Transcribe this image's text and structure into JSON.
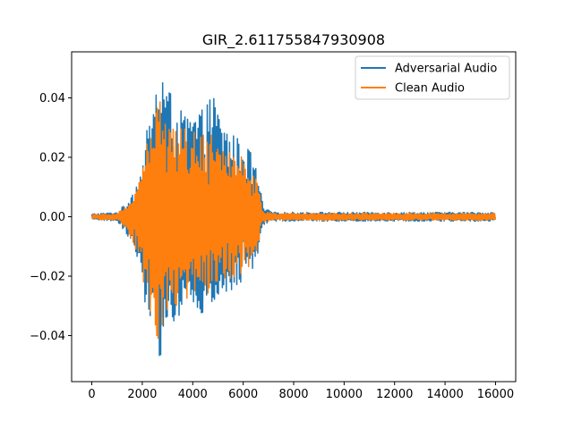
{
  "chart_data": {
    "type": "line",
    "title": "GIR_2.611755847930908",
    "xlabel": "",
    "ylabel": "",
    "xlim": [
      -800,
      16800
    ],
    "ylim": [
      -0.0555,
      0.0555
    ],
    "xticks": [
      0,
      2000,
      4000,
      6000,
      8000,
      10000,
      12000,
      14000,
      16000
    ],
    "xtick_labels": [
      "0",
      "2000",
      "4000",
      "6000",
      "8000",
      "10000",
      "12000",
      "14000",
      "16000"
    ],
    "yticks": [
      -0.04,
      -0.02,
      0.0,
      0.02,
      0.04
    ],
    "ytick_labels": [
      "−0.04",
      "−0.02",
      "0.00",
      "0.02",
      "0.04"
    ],
    "grid": false,
    "legend_position": "top-right",
    "n_samples": 16000,
    "series": [
      {
        "name": "Adversarial Audio",
        "color": "#1f77b4",
        "envelope": {
          "x": [
            0,
            1000,
            1400,
            1800,
            2000,
            2200,
            2400,
            2600,
            2800,
            3000,
            3300,
            3600,
            4000,
            4400,
            4800,
            5200,
            5600,
            6000,
            6300,
            6600,
            6800,
            7200,
            8000,
            10000,
            12000,
            14000,
            16000
          ],
          "upper": [
            0.001,
            0.0015,
            0.005,
            0.012,
            0.018,
            0.03,
            0.036,
            0.048,
            0.052,
            0.045,
            0.038,
            0.035,
            0.035,
            0.036,
            0.042,
            0.032,
            0.028,
            0.025,
            0.022,
            0.014,
            0.003,
            0.0015,
            0.0015,
            0.0015,
            0.0015,
            0.0015,
            0.0015
          ],
          "lower": [
            -0.001,
            -0.0015,
            -0.006,
            -0.014,
            -0.022,
            -0.035,
            -0.04,
            -0.05,
            -0.045,
            -0.04,
            -0.035,
            -0.033,
            -0.034,
            -0.033,
            -0.03,
            -0.028,
            -0.026,
            -0.022,
            -0.02,
            -0.012,
            -0.003,
            -0.0015,
            -0.0015,
            -0.0015,
            -0.0015,
            -0.0015,
            -0.0015
          ]
        }
      },
      {
        "name": "Clean Audio",
        "color": "#ff7f0e",
        "envelope": {
          "x": [
            0,
            1000,
            1400,
            1800,
            2000,
            2200,
            2400,
            2600,
            2800,
            3000,
            3300,
            3600,
            4000,
            4400,
            4800,
            5200,
            5600,
            6000,
            6300,
            6600,
            6800,
            7200,
            8000,
            10000,
            12000,
            14000,
            16000
          ],
          "upper": [
            0.0008,
            0.0012,
            0.004,
            0.01,
            0.016,
            0.027,
            0.031,
            0.038,
            0.045,
            0.036,
            0.032,
            0.03,
            0.029,
            0.028,
            0.03,
            0.026,
            0.023,
            0.02,
            0.018,
            0.01,
            0.002,
            0.0012,
            0.0012,
            0.0012,
            0.0012,
            0.0012,
            0.0012
          ],
          "lower": [
            -0.0008,
            -0.0012,
            -0.005,
            -0.012,
            -0.019,
            -0.03,
            -0.035,
            -0.042,
            -0.038,
            -0.034,
            -0.03,
            -0.029,
            -0.028,
            -0.027,
            -0.026,
            -0.024,
            -0.022,
            -0.019,
            -0.017,
            -0.01,
            -0.002,
            -0.0012,
            -0.0012,
            -0.0012,
            -0.0012,
            -0.0012,
            -0.0012
          ]
        }
      }
    ]
  }
}
